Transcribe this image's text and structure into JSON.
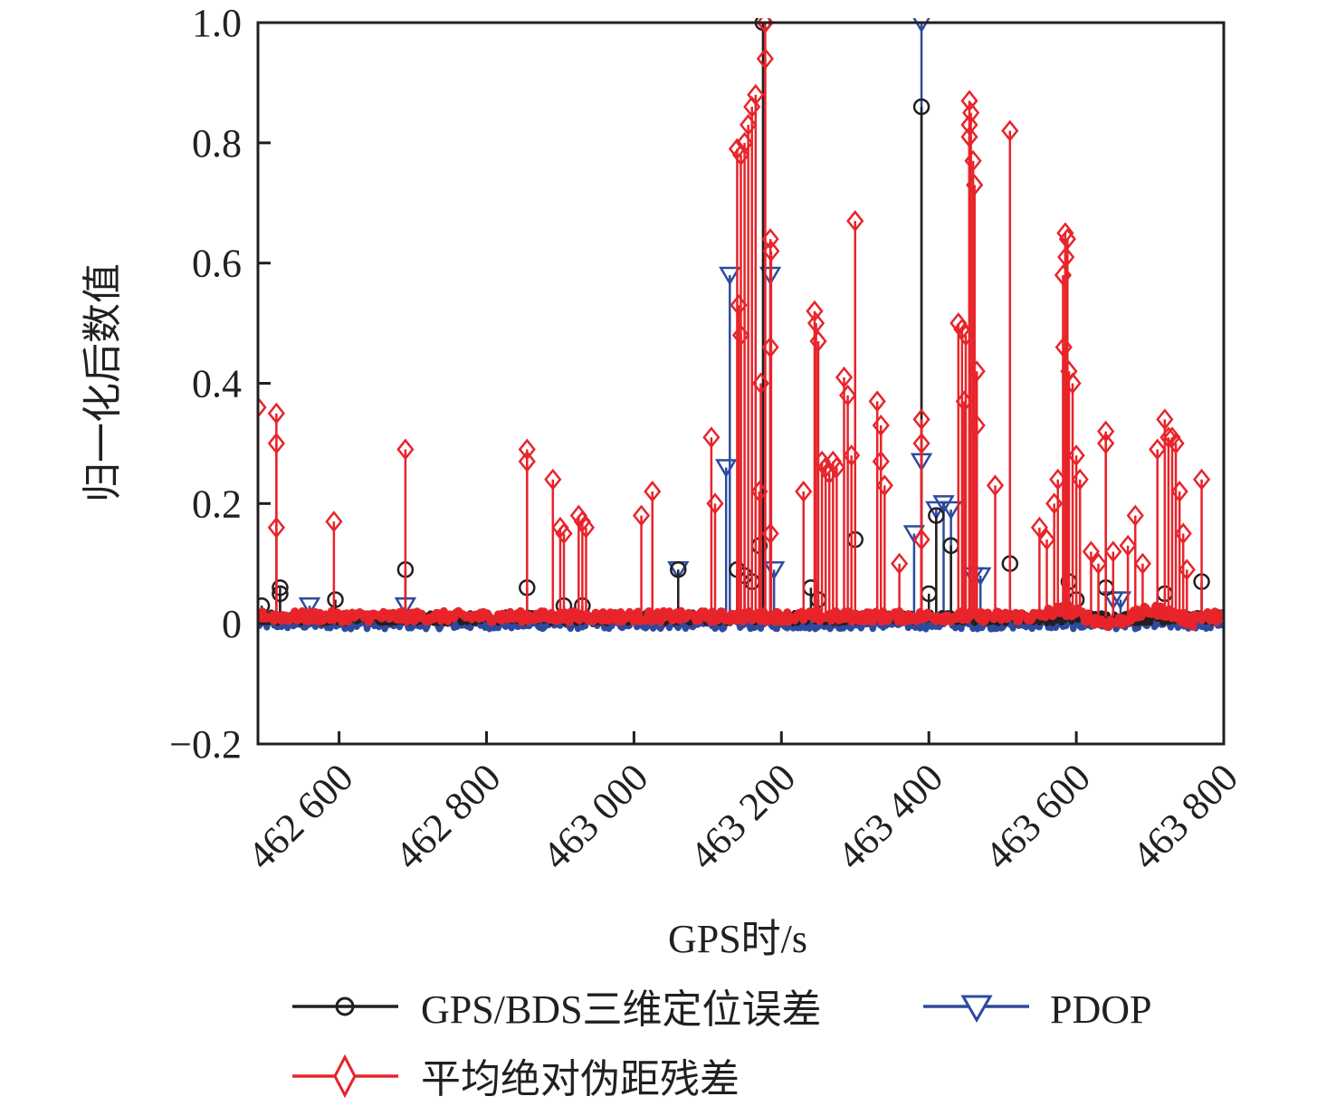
{
  "chart_data": {
    "type": "line",
    "title": "",
    "xlabel": "GPS时/s",
    "ylabel": "归一化后数值",
    "xlim": [
      462490,
      463800
    ],
    "ylim": [
      -0.2,
      1.0
    ],
    "xticks": [
      462600,
      462800,
      463000,
      463200,
      463400,
      463600,
      463800
    ],
    "xtick_labels": [
      "462 600",
      "462 800",
      "463 000",
      "463 200",
      "463 400",
      "463 600",
      "463 800"
    ],
    "yticks": [
      -0.2,
      0,
      0.2,
      0.4,
      0.6,
      0.8,
      1.0
    ],
    "ytick_labels": [
      "−0.2",
      "0",
      "0.2",
      "0.4",
      "0.6",
      "0.8",
      "1.0"
    ],
    "grid": false,
    "legend_position": "bottom",
    "series": [
      {
        "name": "GPS/BDS三维定位误差",
        "color": "#231f20",
        "marker": "circle",
        "baseline": 0.01,
        "spikes": [
          [
            462495,
            0.03
          ],
          [
            462520,
            0.06
          ],
          [
            462520,
            0.05
          ],
          [
            462595,
            0.04
          ],
          [
            462690,
            0.09
          ],
          [
            462855,
            0.06
          ],
          [
            462905,
            0.03
          ],
          [
            462930,
            0.03
          ],
          [
            463060,
            0.09
          ],
          [
            463140,
            0.09
          ],
          [
            463150,
            0.08
          ],
          [
            463160,
            0.07
          ],
          [
            463175,
            1.0
          ],
          [
            463170,
            0.13
          ],
          [
            463240,
            0.06
          ],
          [
            463250,
            0.04
          ],
          [
            463300,
            0.14
          ],
          [
            463390,
            0.86
          ],
          [
            463400,
            0.05
          ],
          [
            463410,
            0.18
          ],
          [
            463430,
            0.13
          ],
          [
            463510,
            0.1
          ],
          [
            463590,
            0.07
          ],
          [
            463600,
            0.04
          ],
          [
            463640,
            0.06
          ],
          [
            463720,
            0.05
          ],
          [
            463770,
            0.07
          ]
        ]
      },
      {
        "name": "PDOP",
        "color": "#2e4a9e",
        "marker": "triangle-down",
        "baseline": 0.0,
        "spikes": [
          [
            462560,
            0.03
          ],
          [
            462690,
            0.03
          ],
          [
            463060,
            0.09
          ],
          [
            463130,
            0.58
          ],
          [
            463125,
            0.26
          ],
          [
            463185,
            0.58
          ],
          [
            463190,
            0.09
          ],
          [
            463380,
            0.15
          ],
          [
            463390,
            1.0
          ],
          [
            463390,
            0.27
          ],
          [
            463410,
            0.19
          ],
          [
            463420,
            0.2
          ],
          [
            463430,
            0.19
          ],
          [
            463460,
            0.08
          ],
          [
            463470,
            0.08
          ],
          [
            463650,
            0.04
          ],
          [
            463660,
            0.04
          ]
        ]
      },
      {
        "name": "平均绝对伪距残差",
        "color": "#e8242b",
        "marker": "diamond",
        "baseline": 0.012,
        "spikes": [
          [
            462490,
            0.36
          ],
          [
            462515,
            0.35
          ],
          [
            462515,
            0.3
          ],
          [
            462515,
            0.16
          ],
          [
            462593,
            0.17
          ],
          [
            462690,
            0.29
          ],
          [
            462855,
            0.29
          ],
          [
            462855,
            0.27
          ],
          [
            462890,
            0.24
          ],
          [
            462900,
            0.16
          ],
          [
            462905,
            0.15
          ],
          [
            462925,
            0.18
          ],
          [
            462930,
            0.17
          ],
          [
            462935,
            0.16
          ],
          [
            463010,
            0.18
          ],
          [
            463025,
            0.22
          ],
          [
            463105,
            0.31
          ],
          [
            463110,
            0.2
          ],
          [
            463140,
            0.79
          ],
          [
            463145,
            0.78
          ],
          [
            463150,
            0.8
          ],
          [
            463155,
            0.83
          ],
          [
            463160,
            0.86
          ],
          [
            463165,
            0.88
          ],
          [
            463142,
            0.53
          ],
          [
            463145,
            0.48
          ],
          [
            463172,
            0.4
          ],
          [
            463170,
            0.22
          ],
          [
            463178,
            1.0
          ],
          [
            463178,
            0.94
          ],
          [
            463185,
            0.64
          ],
          [
            463186,
            0.62
          ],
          [
            463185,
            0.46
          ],
          [
            463185,
            0.15
          ],
          [
            463230,
            0.22
          ],
          [
            463245,
            0.52
          ],
          [
            463247,
            0.5
          ],
          [
            463250,
            0.47
          ],
          [
            463255,
            0.27
          ],
          [
            463260,
            0.26
          ],
          [
            463265,
            0.25
          ],
          [
            463270,
            0.27
          ],
          [
            463275,
            0.26
          ],
          [
            463285,
            0.41
          ],
          [
            463290,
            0.38
          ],
          [
            463295,
            0.28
          ],
          [
            463300,
            0.67
          ],
          [
            463330,
            0.37
          ],
          [
            463335,
            0.33
          ],
          [
            463335,
            0.27
          ],
          [
            463340,
            0.23
          ],
          [
            463360,
            0.1
          ],
          [
            463390,
            0.34
          ],
          [
            463390,
            0.3
          ],
          [
            463390,
            0.14
          ],
          [
            463440,
            0.5
          ],
          [
            463445,
            0.49
          ],
          [
            463450,
            0.48
          ],
          [
            463448,
            0.37
          ],
          [
            463455,
            0.87
          ],
          [
            463457,
            0.85
          ],
          [
            463455,
            0.83
          ],
          [
            463455,
            0.81
          ],
          [
            463460,
            0.77
          ],
          [
            463462,
            0.73
          ],
          [
            463465,
            0.42
          ],
          [
            463465,
            0.33
          ],
          [
            463490,
            0.23
          ],
          [
            463510,
            0.82
          ],
          [
            463550,
            0.16
          ],
          [
            463560,
            0.14
          ],
          [
            463570,
            0.2
          ],
          [
            463575,
            0.24
          ],
          [
            463585,
            0.65
          ],
          [
            463588,
            0.64
          ],
          [
            463586,
            0.61
          ],
          [
            463582,
            0.58
          ],
          [
            463583,
            0.46
          ],
          [
            463590,
            0.42
          ],
          [
            463595,
            0.4
          ],
          [
            463600,
            0.28
          ],
          [
            463605,
            0.24
          ],
          [
            463620,
            0.12
          ],
          [
            463630,
            0.1
          ],
          [
            463640,
            0.32
          ],
          [
            463640,
            0.3
          ],
          [
            463650,
            0.12
          ],
          [
            463670,
            0.13
          ],
          [
            463680,
            0.18
          ],
          [
            463690,
            0.1
          ],
          [
            463710,
            0.29
          ],
          [
            463720,
            0.34
          ],
          [
            463725,
            0.31
          ],
          [
            463730,
            0.31
          ],
          [
            463735,
            0.3
          ],
          [
            463740,
            0.22
          ],
          [
            463745,
            0.15
          ],
          [
            463750,
            0.09
          ],
          [
            463770,
            0.24
          ]
        ]
      }
    ]
  }
}
